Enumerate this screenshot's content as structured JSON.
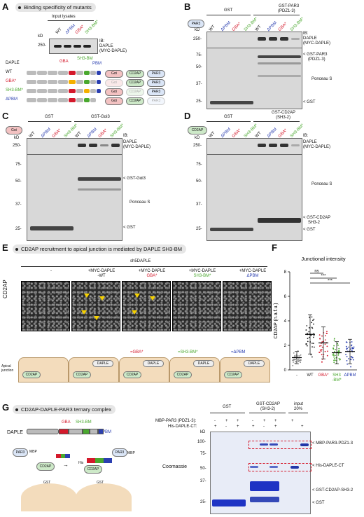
{
  "panels": {
    "A": "A",
    "B": "B",
    "C": "C",
    "D": "D",
    "E": "E",
    "F": "F",
    "G": "G"
  },
  "titles": {
    "a": "Binding specificity of mutants",
    "e": "CD2AP recruitment to apical junction is mediated by DAPLE SH3-BM",
    "g": "CD2AP-DAPLE-PAR3 ternary complex"
  },
  "common": {
    "kd": "kD",
    "ib": "IB:",
    "daple": "DAPLE",
    "myc_daple": "(MYC-DAPLE)",
    "ponceau": "Ponceau S",
    "gst": "GST",
    "gst_arrow": "< GST",
    "coomassie": "Coomassie"
  },
  "lanes": {
    "wt": "WT",
    "dpbm": "ΔPBM",
    "gba": "GBA*",
    "sh3": "SH3-BM*"
  },
  "colors": {
    "wt": "#111111",
    "dpbm": "#2b3fb0",
    "gba": "#d4192b",
    "sh3": "#4aa82e"
  },
  "panelA": {
    "input_label": "Input lysates",
    "marker": "250-",
    "domain_labels": {
      "gba": "GBA",
      "sh3bm": "SH3-BM",
      "pbm": "PBM"
    },
    "row_labels": [
      "WT",
      "GBA*",
      "SH3-BM*",
      "ΔPBM"
    ],
    "rows": [
      [
        "Gαi",
        "CD2AP",
        "PAR3"
      ],
      [
        "Gαi",
        "CD2AP",
        "PAR3"
      ],
      [
        "Gαi",
        "CD2AP",
        "PAR3"
      ],
      [
        "Gαi",
        "CD2AP",
        "PAR3"
      ]
    ]
  },
  "panelB": {
    "bait": "PAR3",
    "header": "GST-PAR3",
    "header2": "(PDZ1-3)",
    "arrow1": "< GST-PAR3",
    "arrow1b": "(PDZ1-3)",
    "markers": [
      "250-",
      "75-",
      "50-",
      "37-",
      "25-"
    ]
  },
  "panelC": {
    "bait": "Gαi",
    "header": "GST-Gαi3",
    "arrow1": "< GST-Gαi3",
    "markers": [
      "250-",
      "75-",
      "50-",
      "37-",
      "25-"
    ]
  },
  "panelD": {
    "bait": "CD2AP",
    "header": "GST-CD2AP",
    "header2": "(SH3-2)",
    "arrow1": "< GST-CD2AP",
    "arrow1b": "SH3-2",
    "markers": [
      "250-",
      "75-",
      "50-",
      "37-",
      "25-"
    ]
  },
  "panelE": {
    "construct": "sh5DAPLE",
    "cols": [
      {
        "l1": "-",
        "l2": ""
      },
      {
        "l1": "+MYC-DAPLE",
        "l2": "-WT"
      },
      {
        "l1": "+MYC-DAPLE",
        "l2": "GBA*"
      },
      {
        "l1": "+MYC-DAPLE",
        "l2": "SH3-BM*"
      },
      {
        "l1": "+MYC-DAPLE",
        "l2": "ΔPBM"
      }
    ],
    "ylabel": "CD2AP",
    "apical": "Apical junction",
    "cartoon_labels": {
      "cd2ap": "CD2AP",
      "daple": "DAPLE",
      "gba": "=GBA*",
      "sh3": "=SH3-BM*",
      "pbm": "=ΔPBM"
    }
  },
  "chart_data": {
    "type": "scatter",
    "title": "Junctional intensity",
    "ylabel": "CD2AP (n.a.f.u.)",
    "xlabel": "",
    "categories": [
      "-",
      "WT",
      "GBA*",
      "SH3-BM*",
      "ΔPBM"
    ],
    "ylim": [
      0,
      8
    ],
    "yticks": [
      0,
      2,
      4,
      6,
      8
    ],
    "means": [
      1.0,
      2.9,
      2.2,
      1.4,
      1.5
    ],
    "sd": [
      0.5,
      1.6,
      1.3,
      0.9,
      1.0
    ],
    "point_colors": [
      "#888888",
      "#222222",
      "#d4192b",
      "#4aa82e",
      "#2b3fb0"
    ],
    "significance": [
      {
        "pair": [
          "WT",
          "GBA*"
        ],
        "label": "ns"
      },
      {
        "pair": [
          "WT",
          "SH3-BM*"
        ],
        "label": "***"
      },
      {
        "pair": [
          "WT",
          "ΔPBM"
        ],
        "label": "***"
      }
    ]
  },
  "panelG": {
    "daple": "DAPLE",
    "dom": {
      "gba": "GBA",
      "sh3": "SH3-BM",
      "pbm": "PBM"
    },
    "par3": "PAR3",
    "mbp": "MBP",
    "cd2ap": "CD2AP",
    "gst": "GST",
    "his": "His",
    "hdr_gst": "GST",
    "hdr_cd2ap": "GST-CD2AP",
    "hdr_cd2ap2": "(SH3-2)",
    "hdr_input": "input",
    "hdr_input2": "20%",
    "row1": "MBP-PAR3 (PDZ1-3):",
    "row2": "His-DAPLE-CT:",
    "signs1": [
      "-",
      "+",
      "+",
      "-",
      "+",
      "+",
      "+",
      ""
    ],
    "signs2": [
      "+",
      "-",
      "+",
      "+",
      "-",
      "+",
      "",
      "+"
    ],
    "markers": [
      "kD",
      "100-",
      "75-",
      "50-",
      "37-",
      "25-"
    ],
    "arrows": [
      "< MBP-PAR3-PDZ1-3",
      "< His-DAPLE-CT",
      "< GST-CD2AP-SH3-2",
      "< GST"
    ]
  }
}
